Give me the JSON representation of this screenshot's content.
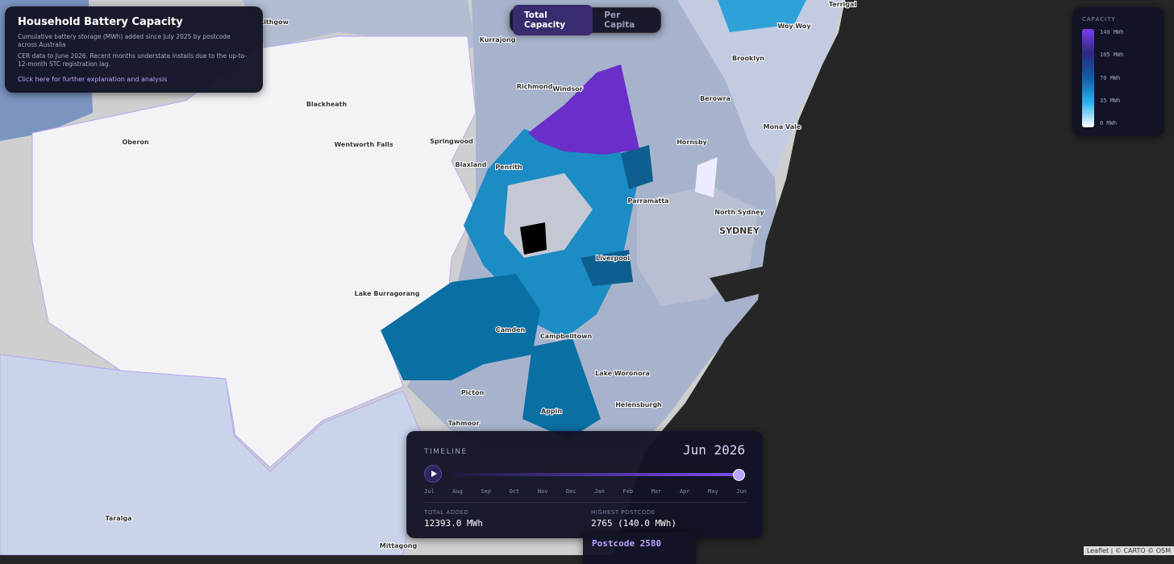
{
  "info": {
    "title": "Household Battery Capacity",
    "subtitle": "Cumulative battery storage (MWh) added since July 2025 by postcode across Australia",
    "note": "CER data to June 2026. Recent months understate installs due to the up-to-12-month STC registration lag.",
    "link": "Click here for further explanation and analysis"
  },
  "toggle": {
    "options": [
      "Total Capacity",
      "Per Capita"
    ],
    "active": 0
  },
  "legend": {
    "title": "CAPACITY",
    "ticks": [
      "140 MWh",
      "105 MWh",
      "70 MWh",
      "35 MWh",
      "0 MWh"
    ]
  },
  "timeline": {
    "label": "TIMELINE",
    "current": "Jun 2026",
    "months": [
      "Jul",
      "Aug",
      "Sep",
      "Oct",
      "Nov",
      "Dec",
      "Jan",
      "Feb",
      "Mar",
      "Apr",
      "May",
      "Jun"
    ],
    "stats": [
      {
        "label": "TOTAL ADDED",
        "value": "12393.0 MWh"
      },
      {
        "label": "HIGHEST POSTCODE",
        "value": "2765 (140.0 MWh)"
      }
    ]
  },
  "tooltip": {
    "title": "Postcode 2580"
  },
  "map": {
    "places": [
      "Lithgow",
      "Terrigal",
      "Woy Woy",
      "Kurrajong",
      "Brooklyn",
      "Richmond",
      "Windsor",
      "Berowra",
      "Blackheath",
      "Mona Vale",
      "Oberon",
      "Hornsby",
      "Wentworth Falls",
      "Springwood",
      "Blaxland",
      "Penrith",
      "Parramatta",
      "North Sydney",
      "SYDNEY",
      "Liverpool",
      "Lake Burragorang",
      "Camden",
      "Campbelltown",
      "Lake Woronora",
      "Picton",
      "Helensburgh",
      "Appin",
      "Tahmoor",
      "Taralga",
      "Mittagong"
    ]
  },
  "attribution": "Leaflet | © CARTO © OSM"
}
